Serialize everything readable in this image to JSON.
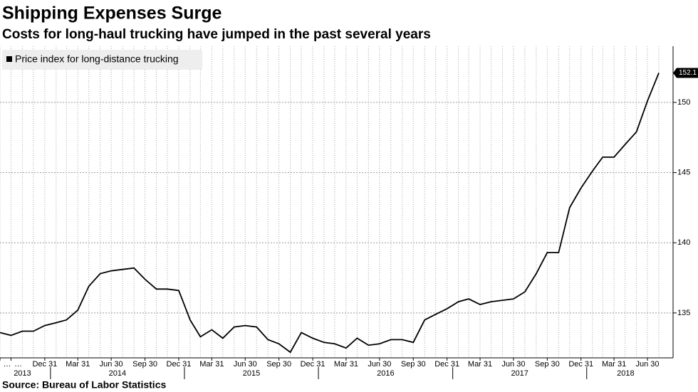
{
  "chart_data": {
    "type": "line",
    "title": "Shipping Expenses Surge",
    "subtitle": "Costs for long-haul trucking have jumped in the past several years",
    "source": "Source: Bureau of Labor Statistics",
    "x": [
      "2013-08-31",
      "2013-09-30",
      "2013-10-31",
      "2013-11-30",
      "2013-12-31",
      "2014-01-31",
      "2014-02-28",
      "2014-03-31",
      "2014-04-30",
      "2014-05-31",
      "2014-06-30",
      "2014-07-31",
      "2014-08-31",
      "2014-09-30",
      "2014-10-31",
      "2014-11-30",
      "2014-12-31",
      "2015-01-31",
      "2015-02-28",
      "2015-03-31",
      "2015-04-30",
      "2015-05-31",
      "2015-06-30",
      "2015-07-31",
      "2015-08-31",
      "2015-09-30",
      "2015-10-31",
      "2015-11-30",
      "2015-12-31",
      "2016-01-31",
      "2016-02-29",
      "2016-03-31",
      "2016-04-30",
      "2016-05-31",
      "2016-06-30",
      "2016-07-31",
      "2016-08-31",
      "2016-09-30",
      "2016-10-31",
      "2016-11-30",
      "2016-12-31",
      "2017-01-31",
      "2017-02-28",
      "2017-03-31",
      "2017-04-30",
      "2017-05-31",
      "2017-06-30",
      "2017-07-31",
      "2017-08-31",
      "2017-09-30",
      "2017-10-31",
      "2017-11-30",
      "2017-12-31",
      "2018-01-31",
      "2018-02-28",
      "2018-03-31",
      "2018-04-30",
      "2018-05-31",
      "2018-06-30",
      "2018-07-31"
    ],
    "series": [
      {
        "name": "Price index for long-distance trucking",
        "color": "#000000",
        "values": [
          133.6,
          133.4,
          133.7,
          133.7,
          134.1,
          134.3,
          134.5,
          135.2,
          136.9,
          137.8,
          138.0,
          138.1,
          138.2,
          137.4,
          136.7,
          136.7,
          136.6,
          134.5,
          133.3,
          133.8,
          133.2,
          134.0,
          134.1,
          134.0,
          133.1,
          132.8,
          132.2,
          133.6,
          133.2,
          132.9,
          132.8,
          132.5,
          133.2,
          132.7,
          132.8,
          133.1,
          133.1,
          132.9,
          134.5,
          134.9,
          135.3,
          135.8,
          136.0,
          135.6,
          135.8,
          135.9,
          136.0,
          136.5,
          137.8,
          139.3,
          139.3,
          142.5,
          143.9,
          145.1,
          146.1,
          146.1,
          147.0,
          147.9,
          150.1,
          152.1
        ]
      }
    ],
    "ylim": [
      131.8,
      154
    ],
    "yticks": [
      135,
      140,
      145,
      150
    ],
    "xticks": [
      {
        "value": "2013-08-31",
        "label": "…"
      },
      {
        "value": "2013-09-30",
        "label": "…"
      },
      {
        "value": "2013-12-31",
        "label": "Dec 31"
      },
      {
        "value": "2014-03-31",
        "label": "Mar 31"
      },
      {
        "value": "2014-06-30",
        "label": "Jun 30"
      },
      {
        "value": "2014-09-30",
        "label": "Sep 30"
      },
      {
        "value": "2014-12-31",
        "label": "Dec 31"
      },
      {
        "value": "2015-03-31",
        "label": "Mar 31"
      },
      {
        "value": "2015-06-30",
        "label": "Jun 30"
      },
      {
        "value": "2015-09-30",
        "label": "Sep 30"
      },
      {
        "value": "2015-12-31",
        "label": "Dec 31"
      },
      {
        "value": "2016-03-31",
        "label": "Mar 31"
      },
      {
        "value": "2016-06-30",
        "label": "Jun 30"
      },
      {
        "value": "2016-09-30",
        "label": "Sep 30"
      },
      {
        "value": "2016-12-31",
        "label": "Dec 31"
      },
      {
        "value": "2017-03-31",
        "label": "Mar 31"
      },
      {
        "value": "2017-06-30",
        "label": "Jun 30"
      },
      {
        "value": "2017-09-30",
        "label": "Sep 30"
      },
      {
        "value": "2017-12-31",
        "label": "Dec 31"
      },
      {
        "value": "2018-03-31",
        "label": "Mar 31"
      },
      {
        "value": "2018-06-30",
        "label": "Jun 30"
      }
    ],
    "x_groups": [
      "2013",
      "2014",
      "2015",
      "2016",
      "2017",
      "2018"
    ],
    "grid": true,
    "legend": "top-left"
  }
}
